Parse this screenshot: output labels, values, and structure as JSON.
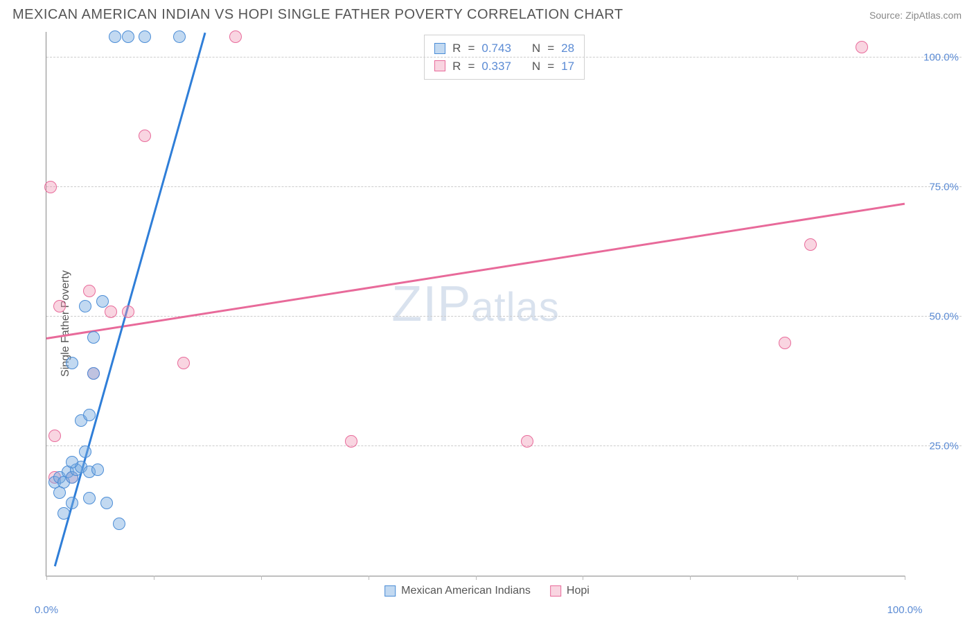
{
  "header": {
    "title": "MEXICAN AMERICAN INDIAN VS HOPI SINGLE FATHER POVERTY CORRELATION CHART",
    "source_prefix": "Source: ",
    "source_name": "ZipAtlas.com"
  },
  "chart": {
    "type": "scatter",
    "ylabel": "Single Father Poverty",
    "xlim": [
      0,
      100
    ],
    "ylim": [
      0,
      105
    ],
    "xtick_positions": [
      0,
      12.5,
      25,
      37.5,
      50,
      62.5,
      75,
      87.5,
      100
    ],
    "xtick_labels": {
      "0": "0.0%",
      "100": "100.0%"
    },
    "ytick_positions": [
      25,
      50,
      75,
      100
    ],
    "ytick_labels": {
      "25": "25.0%",
      "50": "50.0%",
      "75": "75.0%",
      "100": "100.0%"
    },
    "grid_color": "#cccccc",
    "axis_color": "#888888",
    "background_color": "#ffffff",
    "watermark": "ZIPatlas",
    "series": {
      "mexican": {
        "label": "Mexican American Indians",
        "fill": "rgba(120,170,225,0.45)",
        "stroke": "#4a8cd6",
        "line_color": "#2f7ed8",
        "r_value": "0.743",
        "n_value": "28",
        "trend": {
          "x1": 1,
          "y1": 2,
          "x2": 18.5,
          "y2": 105
        },
        "points": [
          {
            "x": 1.0,
            "y": 18
          },
          {
            "x": 1.5,
            "y": 19
          },
          {
            "x": 2.0,
            "y": 18
          },
          {
            "x": 2.5,
            "y": 20
          },
          {
            "x": 3.0,
            "y": 19
          },
          {
            "x": 3.5,
            "y": 20.5
          },
          {
            "x": 4.0,
            "y": 21
          },
          {
            "x": 5.0,
            "y": 20
          },
          {
            "x": 6.0,
            "y": 20.5
          },
          {
            "x": 3.0,
            "y": 14
          },
          {
            "x": 5.0,
            "y": 15
          },
          {
            "x": 7.0,
            "y": 14
          },
          {
            "x": 8.5,
            "y": 10
          },
          {
            "x": 4.0,
            "y": 30
          },
          {
            "x": 5.0,
            "y": 31
          },
          {
            "x": 3.0,
            "y": 41
          },
          {
            "x": 5.5,
            "y": 39
          },
          {
            "x": 5.5,
            "y": 46
          },
          {
            "x": 4.5,
            "y": 52
          },
          {
            "x": 6.5,
            "y": 53
          },
          {
            "x": 8.0,
            "y": 104
          },
          {
            "x": 9.5,
            "y": 104
          },
          {
            "x": 11.5,
            "y": 104
          },
          {
            "x": 15.5,
            "y": 104
          },
          {
            "x": 2.0,
            "y": 12
          },
          {
            "x": 3.0,
            "y": 22
          },
          {
            "x": 4.5,
            "y": 24
          },
          {
            "x": 1.5,
            "y": 16
          }
        ]
      },
      "hopi": {
        "label": "Hopi",
        "fill": "rgba(240,150,180,0.40)",
        "stroke": "#e86a9a",
        "line_color": "#e86a9a",
        "r_value": "0.337",
        "n_value": "17",
        "trend": {
          "x1": 0,
          "y1": 46,
          "x2": 100,
          "y2": 72
        },
        "points": [
          {
            "x": 1.0,
            "y": 27
          },
          {
            "x": 1.5,
            "y": 52
          },
          {
            "x": 5.0,
            "y": 55
          },
          {
            "x": 1.0,
            "y": 19
          },
          {
            "x": 3.0,
            "y": 19
          },
          {
            "x": 0.5,
            "y": 75
          },
          {
            "x": 7.5,
            "y": 51
          },
          {
            "x": 9.5,
            "y": 51
          },
          {
            "x": 5.5,
            "y": 39
          },
          {
            "x": 16.0,
            "y": 41
          },
          {
            "x": 11.5,
            "y": 85
          },
          {
            "x": 22.0,
            "y": 104
          },
          {
            "x": 35.5,
            "y": 26
          },
          {
            "x": 56.0,
            "y": 26
          },
          {
            "x": 86.0,
            "y": 45
          },
          {
            "x": 89.0,
            "y": 64
          },
          {
            "x": 95.0,
            "y": 102
          }
        ]
      }
    }
  },
  "stats_legend": {
    "r_label": "R",
    "n_label": "N",
    "eq": "="
  }
}
